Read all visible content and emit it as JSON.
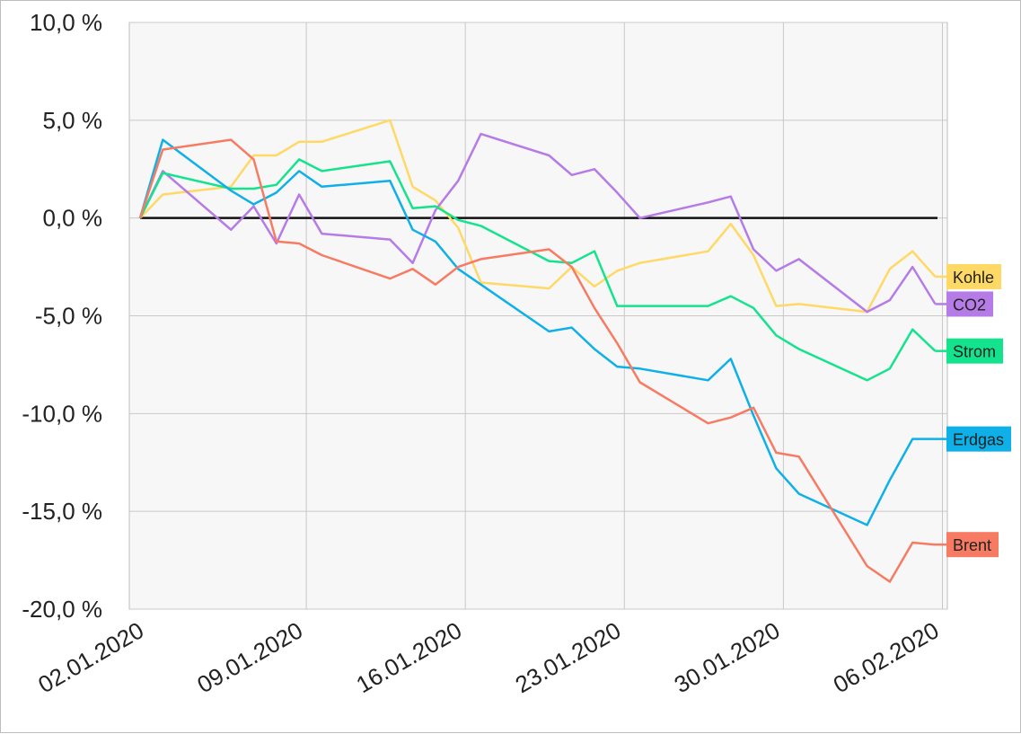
{
  "chart_data": {
    "type": "line",
    "title": "",
    "xlabel": "",
    "ylabel": "",
    "x_start": "02.01.2020",
    "x_end": "06.02.2020",
    "xticks": [
      "02.01.2020",
      "09.01.2020",
      "16.01.2020",
      "23.01.2020",
      "30.01.2020",
      "06.02.2020"
    ],
    "ylim": [
      -20,
      10
    ],
    "yticks": [
      10,
      5,
      0,
      -5,
      -10,
      -15,
      -20
    ],
    "ytick_labels": [
      "10,0 %",
      "5,0 %",
      "0,0 %",
      "-5,0 %",
      "-10,0 %",
      "-15,0 %",
      "-20,0 %"
    ],
    "grid": true,
    "legend_placement": "right end of lines",
    "series": [
      {
        "name": "Kohle",
        "color": "#ffd966",
        "points": [
          [
            "02.01.2020",
            0.0
          ],
          [
            "03.01.2020",
            1.2
          ],
          [
            "06.01.2020",
            1.6
          ],
          [
            "07.01.2020",
            3.2
          ],
          [
            "08.01.2020",
            3.2
          ],
          [
            "09.01.2020",
            3.9
          ],
          [
            "10.01.2020",
            3.9
          ],
          [
            "13.01.2020",
            5.0
          ],
          [
            "14.01.2020",
            1.6
          ],
          [
            "15.01.2020",
            0.9
          ],
          [
            "16.01.2020",
            -0.5
          ],
          [
            "17.01.2020",
            -3.3
          ],
          [
            "20.01.2020",
            -3.6
          ],
          [
            "21.01.2020",
            -2.5
          ],
          [
            "22.01.2020",
            -3.5
          ],
          [
            "23.01.2020",
            -2.7
          ],
          [
            "24.01.2020",
            -2.3
          ],
          [
            "27.01.2020",
            -1.7
          ],
          [
            "28.01.2020",
            -0.3
          ],
          [
            "29.01.2020",
            -1.9
          ],
          [
            "30.01.2020",
            -4.5
          ],
          [
            "31.01.2020",
            -4.4
          ],
          [
            "03.02.2020",
            -4.8
          ],
          [
            "04.02.2020",
            -2.6
          ],
          [
            "05.02.2020",
            -1.7
          ],
          [
            "06.02.2020",
            -3.0
          ]
        ]
      },
      {
        "name": "CO2",
        "color": "#b57be6",
        "points": [
          [
            "02.01.2020",
            0.0
          ],
          [
            "03.01.2020",
            2.4
          ],
          [
            "06.01.2020",
            -0.6
          ],
          [
            "07.01.2020",
            0.6
          ],
          [
            "08.01.2020",
            -1.3
          ],
          [
            "09.01.2020",
            1.2
          ],
          [
            "10.01.2020",
            -0.8
          ],
          [
            "13.01.2020",
            -1.1
          ],
          [
            "14.01.2020",
            -2.3
          ],
          [
            "15.01.2020",
            0.4
          ],
          [
            "16.01.2020",
            1.9
          ],
          [
            "17.01.2020",
            4.3
          ],
          [
            "20.01.2020",
            3.2
          ],
          [
            "21.01.2020",
            2.2
          ],
          [
            "22.01.2020",
            2.5
          ],
          [
            "23.01.2020",
            1.3
          ],
          [
            "24.01.2020",
            0.0
          ],
          [
            "27.01.2020",
            0.8
          ],
          [
            "28.01.2020",
            1.1
          ],
          [
            "29.01.2020",
            -1.6
          ],
          [
            "30.01.2020",
            -2.7
          ],
          [
            "31.01.2020",
            -2.1
          ],
          [
            "03.02.2020",
            -4.8
          ],
          [
            "04.02.2020",
            -4.2
          ],
          [
            "05.02.2020",
            -2.5
          ],
          [
            "06.02.2020",
            -4.4
          ]
        ]
      },
      {
        "name": "Strom",
        "color": "#14e38e",
        "points": [
          [
            "02.01.2020",
            0.0
          ],
          [
            "03.01.2020",
            2.3
          ],
          [
            "06.01.2020",
            1.5
          ],
          [
            "07.01.2020",
            1.5
          ],
          [
            "08.01.2020",
            1.7
          ],
          [
            "09.01.2020",
            3.0
          ],
          [
            "10.01.2020",
            2.4
          ],
          [
            "13.01.2020",
            2.9
          ],
          [
            "14.01.2020",
            0.5
          ],
          [
            "15.01.2020",
            0.6
          ],
          [
            "16.01.2020",
            -0.1
          ],
          [
            "17.01.2020",
            -0.4
          ],
          [
            "20.01.2020",
            -2.2
          ],
          [
            "21.01.2020",
            -2.3
          ],
          [
            "22.01.2020",
            -1.7
          ],
          [
            "23.01.2020",
            -4.5
          ],
          [
            "24.01.2020",
            -4.5
          ],
          [
            "27.01.2020",
            -4.5
          ],
          [
            "28.01.2020",
            -4.0
          ],
          [
            "29.01.2020",
            -4.6
          ],
          [
            "30.01.2020",
            -6.0
          ],
          [
            "31.01.2020",
            -6.7
          ],
          [
            "03.02.2020",
            -8.3
          ],
          [
            "04.02.2020",
            -7.7
          ],
          [
            "05.02.2020",
            -5.7
          ],
          [
            "06.02.2020",
            -6.8
          ]
        ]
      },
      {
        "name": "Erdgas",
        "color": "#0fb0e8",
        "points": [
          [
            "02.01.2020",
            0.0
          ],
          [
            "03.01.2020",
            4.0
          ],
          [
            "06.01.2020",
            1.4
          ],
          [
            "07.01.2020",
            0.7
          ],
          [
            "08.01.2020",
            1.3
          ],
          [
            "09.01.2020",
            2.4
          ],
          [
            "10.01.2020",
            1.6
          ],
          [
            "13.01.2020",
            1.9
          ],
          [
            "14.01.2020",
            -0.6
          ],
          [
            "15.01.2020",
            -1.2
          ],
          [
            "16.01.2020",
            -2.6
          ],
          [
            "17.01.2020",
            -3.4
          ],
          [
            "20.01.2020",
            -5.8
          ],
          [
            "21.01.2020",
            -5.6
          ],
          [
            "22.01.2020",
            -6.7
          ],
          [
            "23.01.2020",
            -7.6
          ],
          [
            "24.01.2020",
            -7.7
          ],
          [
            "27.01.2020",
            -8.3
          ],
          [
            "28.01.2020",
            -7.2
          ],
          [
            "29.01.2020",
            -10.1
          ],
          [
            "30.01.2020",
            -12.8
          ],
          [
            "31.01.2020",
            -14.1
          ],
          [
            "03.02.2020",
            -15.7
          ],
          [
            "04.02.2020",
            -13.4
          ],
          [
            "05.02.2020",
            -11.3
          ],
          [
            "06.02.2020",
            -11.3
          ]
        ]
      },
      {
        "name": "Brent",
        "color": "#f77b63",
        "points": [
          [
            "02.01.2020",
            0.0
          ],
          [
            "03.01.2020",
            3.5
          ],
          [
            "06.01.2020",
            4.0
          ],
          [
            "07.01.2020",
            3.0
          ],
          [
            "08.01.2020",
            -1.2
          ],
          [
            "09.01.2020",
            -1.3
          ],
          [
            "10.01.2020",
            -1.9
          ],
          [
            "13.01.2020",
            -3.1
          ],
          [
            "14.01.2020",
            -2.6
          ],
          [
            "15.01.2020",
            -3.4
          ],
          [
            "16.01.2020",
            -2.5
          ],
          [
            "17.01.2020",
            -2.1
          ],
          [
            "20.01.2020",
            -1.6
          ],
          [
            "21.01.2020",
            -2.5
          ],
          [
            "22.01.2020",
            -4.6
          ],
          [
            "23.01.2020",
            -6.4
          ],
          [
            "24.01.2020",
            -8.4
          ],
          [
            "27.01.2020",
            -10.5
          ],
          [
            "28.01.2020",
            -10.2
          ],
          [
            "29.01.2020",
            -9.7
          ],
          [
            "30.01.2020",
            -12.0
          ],
          [
            "31.01.2020",
            -12.2
          ],
          [
            "03.02.2020",
            -17.8
          ],
          [
            "04.02.2020",
            -18.6
          ],
          [
            "05.02.2020",
            -16.6
          ],
          [
            "06.02.2020",
            -16.7
          ]
        ]
      }
    ]
  }
}
